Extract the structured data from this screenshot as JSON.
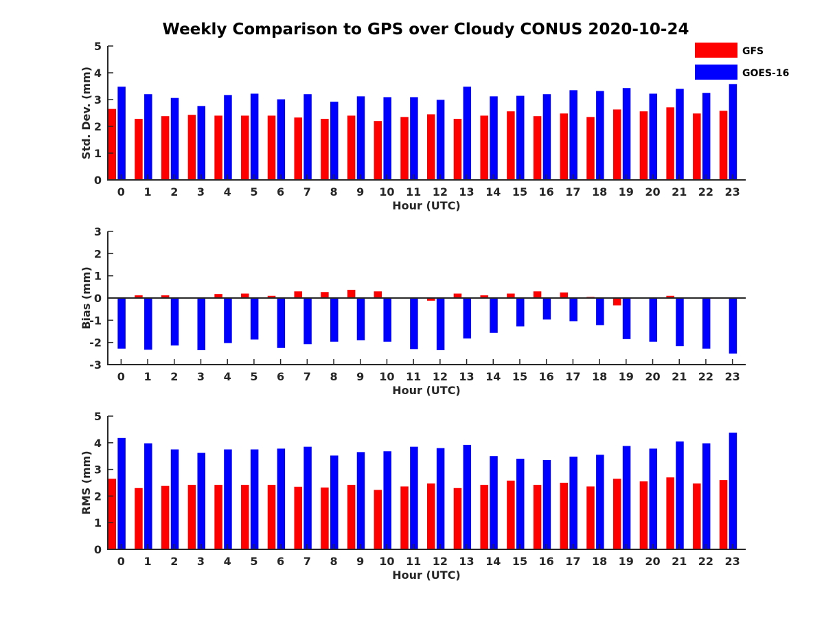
{
  "title": "Weekly Comparison to GPS over Cloudy CONUS 2020-10-24",
  "colors": {
    "gfs": "#ff0000",
    "goes": "#0000ff",
    "axis": "#262626"
  },
  "legend": {
    "placement": "top-right",
    "items": [
      "GFS",
      "GOES-16"
    ]
  },
  "chart_data": [
    {
      "type": "bar",
      "ylabel": "Std. Dev. (mm)",
      "xlabel": "Hour (UTC)",
      "ylim": [
        0,
        5
      ],
      "yticks": [
        0,
        1,
        2,
        3,
        4,
        5
      ],
      "grid": false,
      "categories": [
        "0",
        "1",
        "2",
        "3",
        "4",
        "5",
        "6",
        "7",
        "8",
        "9",
        "10",
        "11",
        "12",
        "13",
        "14",
        "15",
        "16",
        "17",
        "18",
        "19",
        "20",
        "21",
        "22",
        "23"
      ],
      "series": [
        {
          "name": "GFS",
          "values": [
            2.65,
            2.28,
            2.38,
            2.43,
            2.4,
            2.4,
            2.4,
            2.33,
            2.28,
            2.4,
            2.2,
            2.35,
            2.45,
            2.28,
            2.4,
            2.56,
            2.38,
            2.48,
            2.35,
            2.63,
            2.56,
            2.71,
            2.48,
            2.58
          ]
        },
        {
          "name": "GOES-16",
          "values": [
            3.48,
            3.2,
            3.06,
            2.76,
            3.17,
            3.22,
            3.01,
            3.2,
            2.92,
            3.12,
            3.09,
            3.09,
            2.99,
            3.48,
            3.12,
            3.14,
            3.2,
            3.35,
            3.32,
            3.43,
            3.22,
            3.4,
            3.25,
            3.58
          ]
        }
      ]
    },
    {
      "type": "bar",
      "ylabel": "Bias (mm)",
      "xlabel": "Hour (UTC)",
      "ylim": [
        -3,
        3
      ],
      "yticks": [
        -3,
        -2,
        -1,
        0,
        1,
        2,
        3
      ],
      "grid": false,
      "categories": [
        "0",
        "1",
        "2",
        "3",
        "4",
        "5",
        "6",
        "7",
        "8",
        "9",
        "10",
        "11",
        "12",
        "13",
        "14",
        "15",
        "16",
        "17",
        "18",
        "19",
        "20",
        "21",
        "22",
        "23"
      ],
      "series": [
        {
          "name": "GFS",
          "values": [
            -0.02,
            0.12,
            0.12,
            0.02,
            0.18,
            0.2,
            0.1,
            0.3,
            0.27,
            0.37,
            0.3,
            0.0,
            -0.12,
            0.2,
            0.12,
            0.2,
            0.3,
            0.25,
            0.05,
            -0.33,
            0.0,
            0.1,
            0.0,
            0.02
          ]
        },
        {
          "name": "GOES-16",
          "values": [
            -2.28,
            -2.33,
            -2.14,
            -2.35,
            -2.03,
            -1.87,
            -2.25,
            -2.08,
            -1.97,
            -1.9,
            -1.97,
            -2.3,
            -2.35,
            -1.82,
            -1.57,
            -1.28,
            -0.97,
            -1.05,
            -1.22,
            -1.85,
            -1.97,
            -2.17,
            -2.28,
            -2.5
          ]
        }
      ]
    },
    {
      "type": "bar",
      "ylabel": "RMS (mm)",
      "xlabel": "Hour (UTC)",
      "ylim": [
        0,
        5
      ],
      "yticks": [
        0,
        1,
        2,
        3,
        4,
        5
      ],
      "grid": false,
      "categories": [
        "0",
        "1",
        "2",
        "3",
        "4",
        "5",
        "6",
        "7",
        "8",
        "9",
        "10",
        "11",
        "12",
        "13",
        "14",
        "15",
        "16",
        "17",
        "18",
        "19",
        "20",
        "21",
        "22",
        "23"
      ],
      "series": [
        {
          "name": "GFS",
          "values": [
            2.65,
            2.3,
            2.38,
            2.42,
            2.42,
            2.42,
            2.42,
            2.35,
            2.32,
            2.42,
            2.23,
            2.36,
            2.47,
            2.3,
            2.42,
            2.58,
            2.42,
            2.5,
            2.36,
            2.65,
            2.55,
            2.7,
            2.47,
            2.6
          ]
        },
        {
          "name": "GOES-16",
          "values": [
            4.18,
            3.98,
            3.75,
            3.62,
            3.75,
            3.75,
            3.78,
            3.85,
            3.52,
            3.65,
            3.68,
            3.85,
            3.8,
            3.92,
            3.5,
            3.4,
            3.35,
            3.48,
            3.55,
            3.88,
            3.78,
            4.05,
            3.98,
            4.38
          ]
        }
      ]
    }
  ]
}
